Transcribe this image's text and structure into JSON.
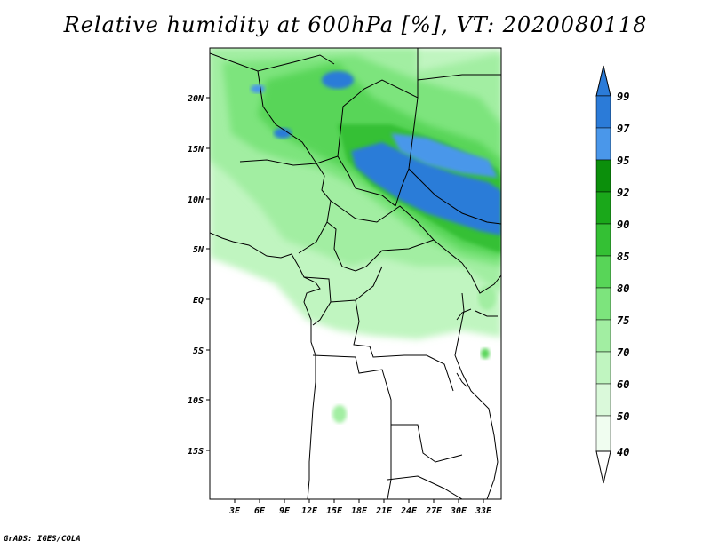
{
  "title": "Relative humidity at 600hPa [%], VT: 2020080118",
  "footer": "GrADS: IGES/COLA",
  "map": {
    "lon_range": [
      0,
      35
    ],
    "lat_range": [
      -20,
      25
    ],
    "lon_ticks": [
      "3E",
      "6E",
      "9E",
      "12E",
      "15E",
      "18E",
      "21E",
      "24E",
      "27E",
      "30E",
      "33E"
    ],
    "lat_ticks": [
      "20N",
      "15N",
      "10N",
      "5N",
      "EQ",
      "5S",
      "10S",
      "15S"
    ]
  },
  "colorbar": {
    "levels": [
      "99",
      "97",
      "95",
      "92",
      "90",
      "85",
      "80",
      "75",
      "70",
      "60",
      "50",
      "40"
    ],
    "colors": [
      "#2b7bd8",
      "#4a97ea",
      "#0b8f0b",
      "#1aa81a",
      "#34c034",
      "#58d558",
      "#7de47d",
      "#a2eea2",
      "#c0f5c0",
      "#daf9da",
      "#f0fdf0",
      "#ffffff"
    ]
  }
}
